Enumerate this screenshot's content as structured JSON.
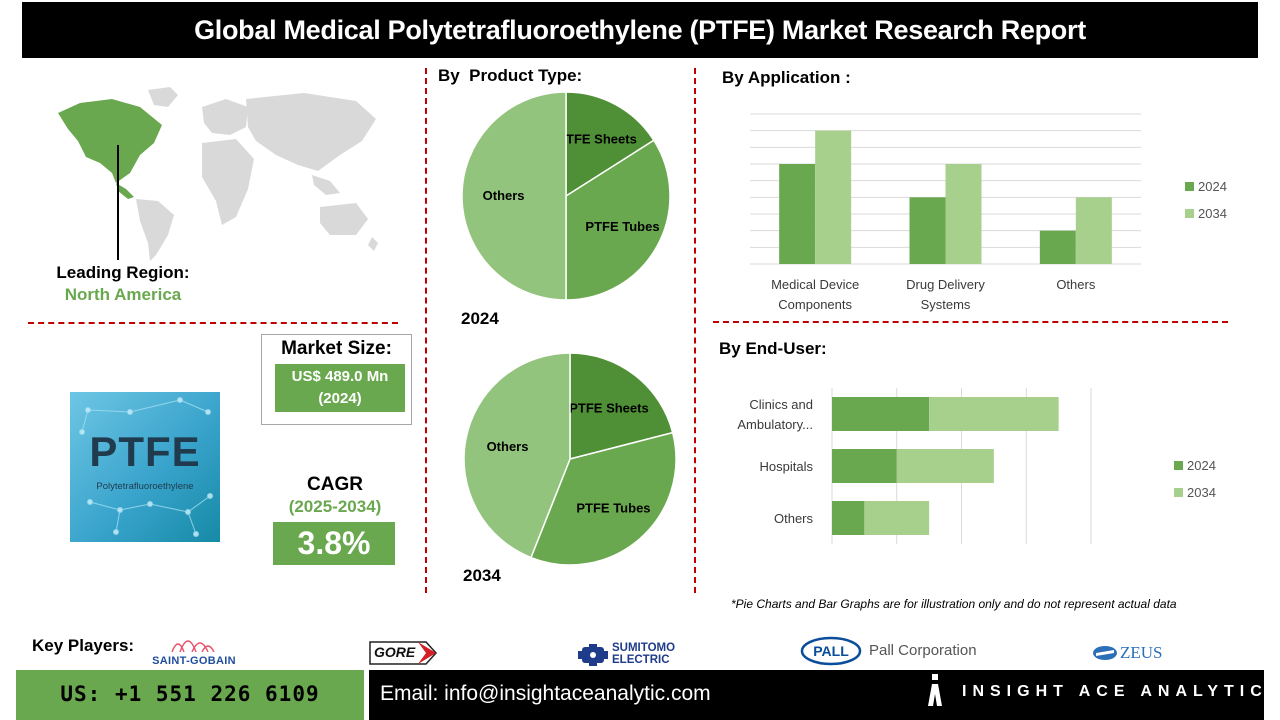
{
  "title": "Global Medical Polytetrafluoroethylene (PTFE) Market Research Report",
  "leading_region": {
    "label": "Leading Region:",
    "value": "North America"
  },
  "ptfe_image": {
    "big": "PTFE",
    "small": "Polytetrafluoroethylene"
  },
  "market_size": {
    "label": "Market Size:",
    "value": "US$ 489.0 Mn",
    "year": "(2024)"
  },
  "cagr": {
    "label": "CAGR",
    "period": "(2025-2034)",
    "value": "3.8%"
  },
  "sections": {
    "product_type": "By  Product Type:",
    "application": "By Application :",
    "end_user": "By End-User:"
  },
  "disclaimer": "*Pie Charts and Bar Graphs are for illustration only and do not represent actual data",
  "key_players_label": "Key Players:",
  "key_players": [
    "SAINT-GOBAIN",
    "GORE",
    "SUMITOMO",
    "ELECTRIC",
    "PALL",
    "Pall Corporation",
    "ZEUS"
  ],
  "footer": {
    "phone": "US: +1 551 226 6109",
    "email": "Email: info@insightaceanalytic.com",
    "brand": "INSIGHT ACE ANALYTIC"
  },
  "colors": {
    "dark_green": "#4f8f36",
    "mid_green": "#6aa84f",
    "light_green": "#93c47d",
    "pale_green": "#a8d08d",
    "accent_red": "#c00000"
  },
  "chart_data": [
    {
      "type": "pie",
      "id": "product_type_2024",
      "title": "2024",
      "labels": [
        "PTFE Sheets",
        "PTFE Tubes",
        "Others"
      ],
      "values": [
        16,
        34,
        50
      ]
    },
    {
      "type": "pie",
      "id": "product_type_2034",
      "title": "2034",
      "labels": [
        "PTFE Sheets",
        "PTFE Tubes",
        "Others"
      ],
      "values": [
        21,
        35,
        44
      ]
    },
    {
      "type": "bar",
      "id": "application",
      "categories": [
        [
          "Medical Device",
          "Components"
        ],
        [
          "Drug Delivery",
          "Systems"
        ],
        [
          "Others"
        ]
      ],
      "series": [
        {
          "name": "2024",
          "values": [
            6,
            4,
            2
          ]
        },
        {
          "name": "2034",
          "values": [
            8,
            6,
            4
          ]
        }
      ],
      "ylim": [
        0,
        9
      ],
      "grid": true,
      "legend": "right"
    },
    {
      "type": "bar",
      "orientation": "horizontal",
      "stacked": true,
      "id": "end_user",
      "categories": [
        [
          "Clinics and",
          "Ambulatory..."
        ],
        [
          "Hospitals"
        ],
        [
          "Others"
        ]
      ],
      "series": [
        {
          "name": "2024",
          "values": [
            3,
            2,
            1
          ]
        },
        {
          "name": "2034",
          "values": [
            4,
            3,
            2
          ]
        }
      ],
      "xlim": [
        0,
        8
      ],
      "grid": true,
      "legend": "right"
    }
  ]
}
